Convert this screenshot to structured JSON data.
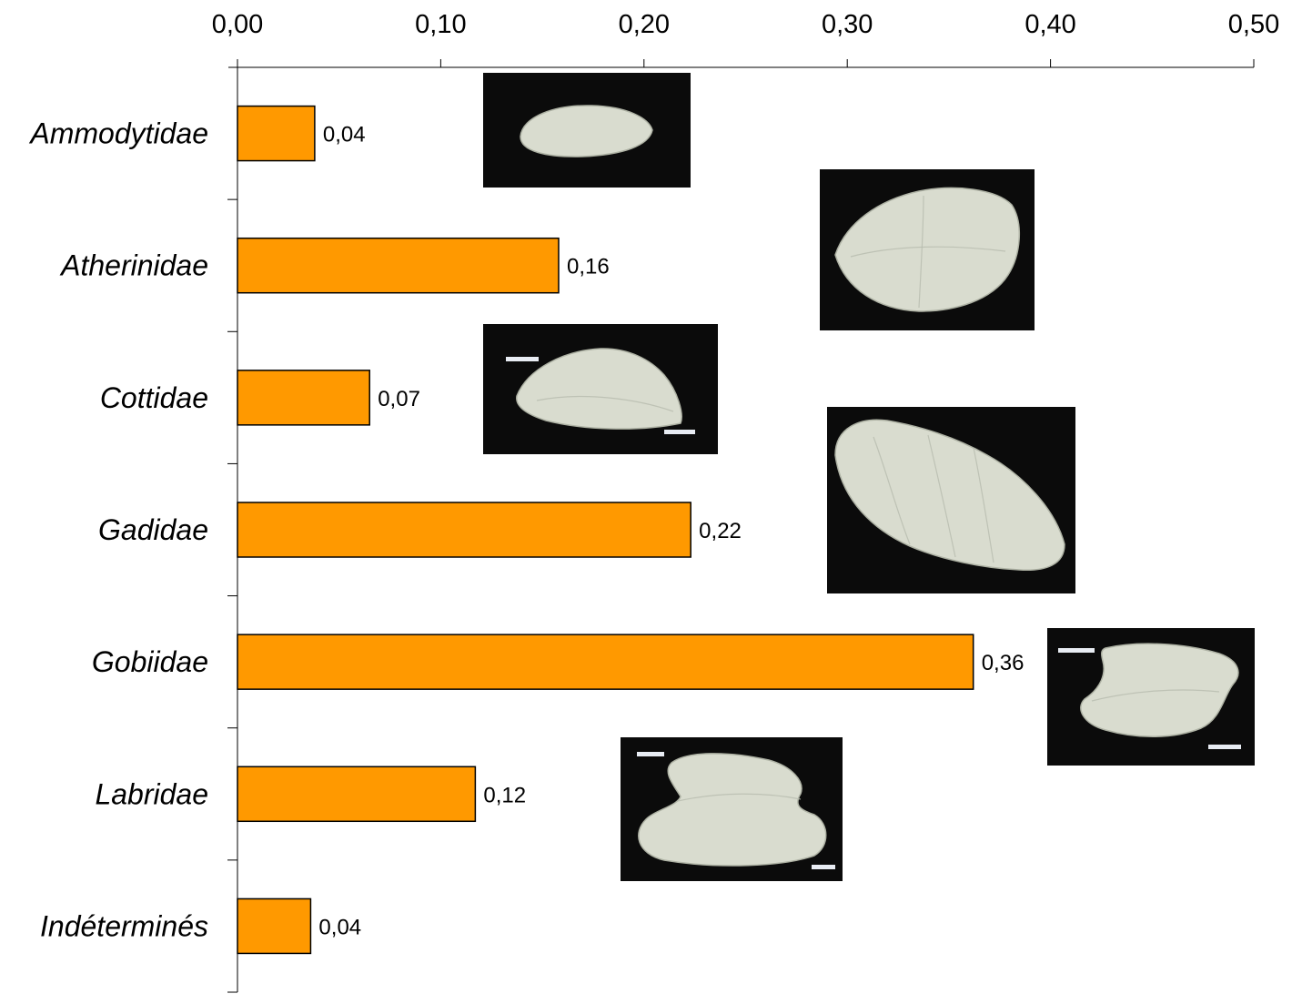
{
  "chart_data": {
    "type": "bar",
    "orientation": "horizontal",
    "title": "",
    "xlabel": "",
    "ylabel": "",
    "categories": [
      "Ammodytidae",
      "Atherinidae",
      "Cottidae",
      "Gadidae",
      "Gobiidae",
      "Labridae",
      "Indéterminés"
    ],
    "values": [
      0.038,
      0.158,
      0.065,
      0.223,
      0.362,
      0.117,
      0.036
    ],
    "value_labels": [
      "0,04",
      "0,16",
      "0,07",
      "0,22",
      "0,36",
      "0,12",
      "0,04"
    ],
    "xlim": [
      0,
      0.5
    ],
    "x_ticks": [
      "0,00",
      "0,10",
      "0,20",
      "0,30",
      "0,40",
      "0,50"
    ],
    "x_axis_position": "top",
    "grid": false,
    "legend": "none",
    "bar_color": "#FF9900",
    "photo_thumbnails": [
      "Ammodytidae",
      "Atherinidae",
      "Cottidae",
      "Gadidae",
      "Gobiidae",
      "Labridae"
    ]
  }
}
